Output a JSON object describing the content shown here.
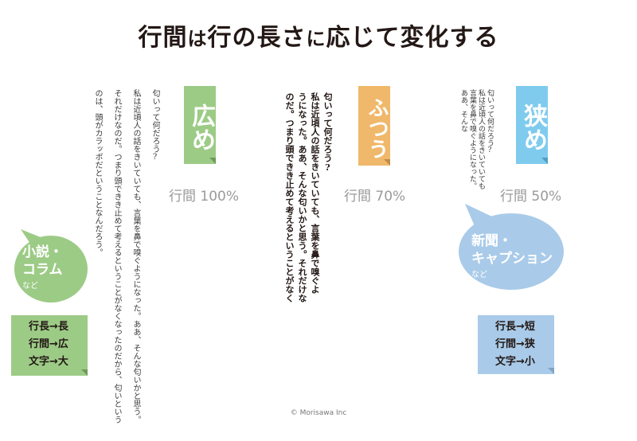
{
  "title": {
    "main": "行間",
    "ha": "は",
    "rest1": "行の長さ",
    "ni": "に",
    "rest2": "応じて変化する"
  },
  "colors": {
    "green": "#9ccb86",
    "orange": "#f0b86a",
    "blue": "#7fcbee",
    "lightblue": "#a9cbe9"
  },
  "columns": {
    "wide": {
      "label": "広め",
      "percent": "行間 100%",
      "lines": [
        "匂いって何だろう?",
        "私は近頃人の話をきいていても、言葉を鼻で嗅ぐようになった。ああ、そんな匂いかと思う。",
        "それだけなのだ。つまり頭できき止めて考えるということがなくなったのだから、匂いという",
        "のは、頭がカラッポだということなんだろう。"
      ]
    },
    "normal": {
      "label": "ふつう",
      "percent": "行間 70%",
      "lines": [
        "匂いって何だろう?",
        "私は近頃人の話をきいていても、言葉を鼻で嗅ぐよ",
        "うになった。ああ、そんな匂いかと思う。それだけな",
        "のだ。つまり頭できき止めて考えるということがなく"
      ]
    },
    "narrow": {
      "label": "狭め",
      "percent": "行間 50%",
      "lines": [
        "匂いって何だろう?",
        "私は近頃人の話をきいていても",
        "言葉を鼻で嗅ぐようになった。",
        "ああ、そんな"
      ]
    }
  },
  "bubbles": {
    "left": {
      "line1": "小説・",
      "line2": "コラム",
      "small": "など"
    },
    "right": {
      "line1": "新聞・",
      "line2": "キャプション",
      "small": "など"
    }
  },
  "notes": {
    "left": [
      "行長→長",
      "行間→広",
      "文字→大"
    ],
    "right": [
      "行長→短",
      "行間→狭",
      "文字→小"
    ]
  },
  "copyright": "© Morisawa Inc"
}
